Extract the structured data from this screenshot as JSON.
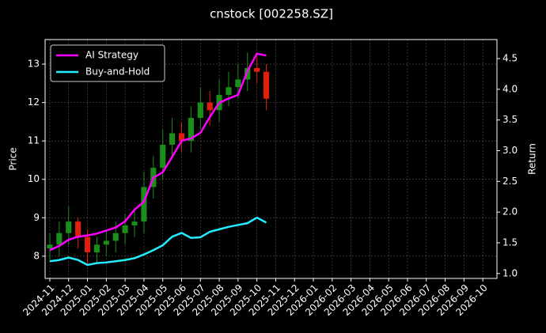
{
  "chart_data": {
    "type": "candlestick",
    "title": "cnstock [002258.SZ]",
    "ylabel": "Price",
    "y2label": "Return",
    "x": [
      0,
      0.5,
      1,
      1.5,
      2,
      2.5,
      3,
      3.5,
      4,
      4.5,
      5,
      5.5,
      6,
      6.5,
      7,
      7.5,
      8,
      8.5,
      9,
      9.5,
      10,
      10.5,
      11,
      11.5
    ],
    "open": [
      8.2,
      8.3,
      8.6,
      8.9,
      8.5,
      8.1,
      8.3,
      8.4,
      8.6,
      8.8,
      8.9,
      9.8,
      10.3,
      10.9,
      11.2,
      11.0,
      11.6,
      12.0,
      11.8,
      12.2,
      12.4,
      12.6,
      12.9,
      12.8
    ],
    "high": [
      8.6,
      8.9,
      9.3,
      9.0,
      8.7,
      8.5,
      8.7,
      8.9,
      9.1,
      9.2,
      10.2,
      10.6,
      11.3,
      11.6,
      11.5,
      11.9,
      12.4,
      12.3,
      12.6,
      12.8,
      13.0,
      13.3,
      13.2,
      13.0
    ],
    "low": [
      7.9,
      8.0,
      8.3,
      8.2,
      7.8,
      7.8,
      8.0,
      8.1,
      8.3,
      8.5,
      8.6,
      9.5,
      10.0,
      10.6,
      10.7,
      10.7,
      11.3,
      11.4,
      11.5,
      11.9,
      12.1,
      12.3,
      12.5,
      11.8
    ],
    "close": [
      8.3,
      8.6,
      8.9,
      8.5,
      8.1,
      8.3,
      8.4,
      8.6,
      8.8,
      8.9,
      9.8,
      10.3,
      10.9,
      11.2,
      11.0,
      11.6,
      12.0,
      11.8,
      12.2,
      12.4,
      12.6,
      12.9,
      12.8,
      12.1
    ],
    "up_color": "#1a8f1a",
    "down_color": "#e0200a",
    "series": [
      {
        "name": "AI Strategy",
        "color": "#ff00ff",
        "axis": "y2",
        "values": [
          1.38,
          1.45,
          1.55,
          1.6,
          1.62,
          1.65,
          1.7,
          1.75,
          1.85,
          2.04,
          2.17,
          2.56,
          2.65,
          2.9,
          3.16,
          3.2,
          3.29,
          3.55,
          3.78,
          3.85,
          3.91,
          4.3,
          4.58,
          4.55
        ]
      },
      {
        "name": "Buy-and-Hold",
        "color": "#22eeff",
        "axis": "y2",
        "values": [
          1.2,
          1.22,
          1.26,
          1.22,
          1.14,
          1.17,
          1.18,
          1.2,
          1.22,
          1.25,
          1.31,
          1.38,
          1.46,
          1.6,
          1.66,
          1.58,
          1.59,
          1.68,
          1.72,
          1.76,
          1.79,
          1.82,
          1.91,
          1.83
        ]
      }
    ],
    "xlim": [
      -0.25,
      23.75
    ],
    "xticks": [
      {
        "value": 0,
        "label": "2024-11"
      },
      {
        "value": 1,
        "label": "2024-12"
      },
      {
        "value": 2,
        "label": "2025-01"
      },
      {
        "value": 3,
        "label": "2025-02"
      },
      {
        "value": 4,
        "label": "2025-03"
      },
      {
        "value": 5,
        "label": "2025-04"
      },
      {
        "value": 6,
        "label": "2025-05"
      },
      {
        "value": 7,
        "label": "2025-06"
      },
      {
        "value": 8,
        "label": "2025-07"
      },
      {
        "value": 9,
        "label": "2025-08"
      },
      {
        "value": 10,
        "label": "2025-09"
      },
      {
        "value": 11,
        "label": "2025-10"
      },
      {
        "value": 12,
        "label": "2025-11"
      },
      {
        "value": 13,
        "label": "2025-12"
      },
      {
        "value": 14,
        "label": "2026-01"
      },
      {
        "value": 15,
        "label": "2026-02"
      },
      {
        "value": 16,
        "label": "2026-03"
      },
      {
        "value": 17,
        "label": "2026-04"
      },
      {
        "value": 18,
        "label": "2026-05"
      },
      {
        "value": 19,
        "label": "2026-06"
      },
      {
        "value": 20,
        "label": "2026-07"
      },
      {
        "value": 21,
        "label": "2026-08"
      },
      {
        "value": 22,
        "label": "2026-09"
      },
      {
        "value": 23,
        "label": "2026-10"
      }
    ],
    "ylim": [
      7.42,
      13.64
    ],
    "yticks": [
      8,
      9,
      10,
      11,
      12,
      13
    ],
    "y2lim": [
      0.92,
      4.81
    ],
    "y2ticks": [
      {
        "value": 1,
        "label": "1.0"
      },
      1.5,
      {
        "value": 2,
        "label": "2.0"
      },
      2.5,
      {
        "value": 3,
        "label": "3.0"
      },
      3.5,
      {
        "value": 4,
        "label": "4.0"
      },
      4.5
    ],
    "grid": true,
    "legend": "upper left"
  }
}
